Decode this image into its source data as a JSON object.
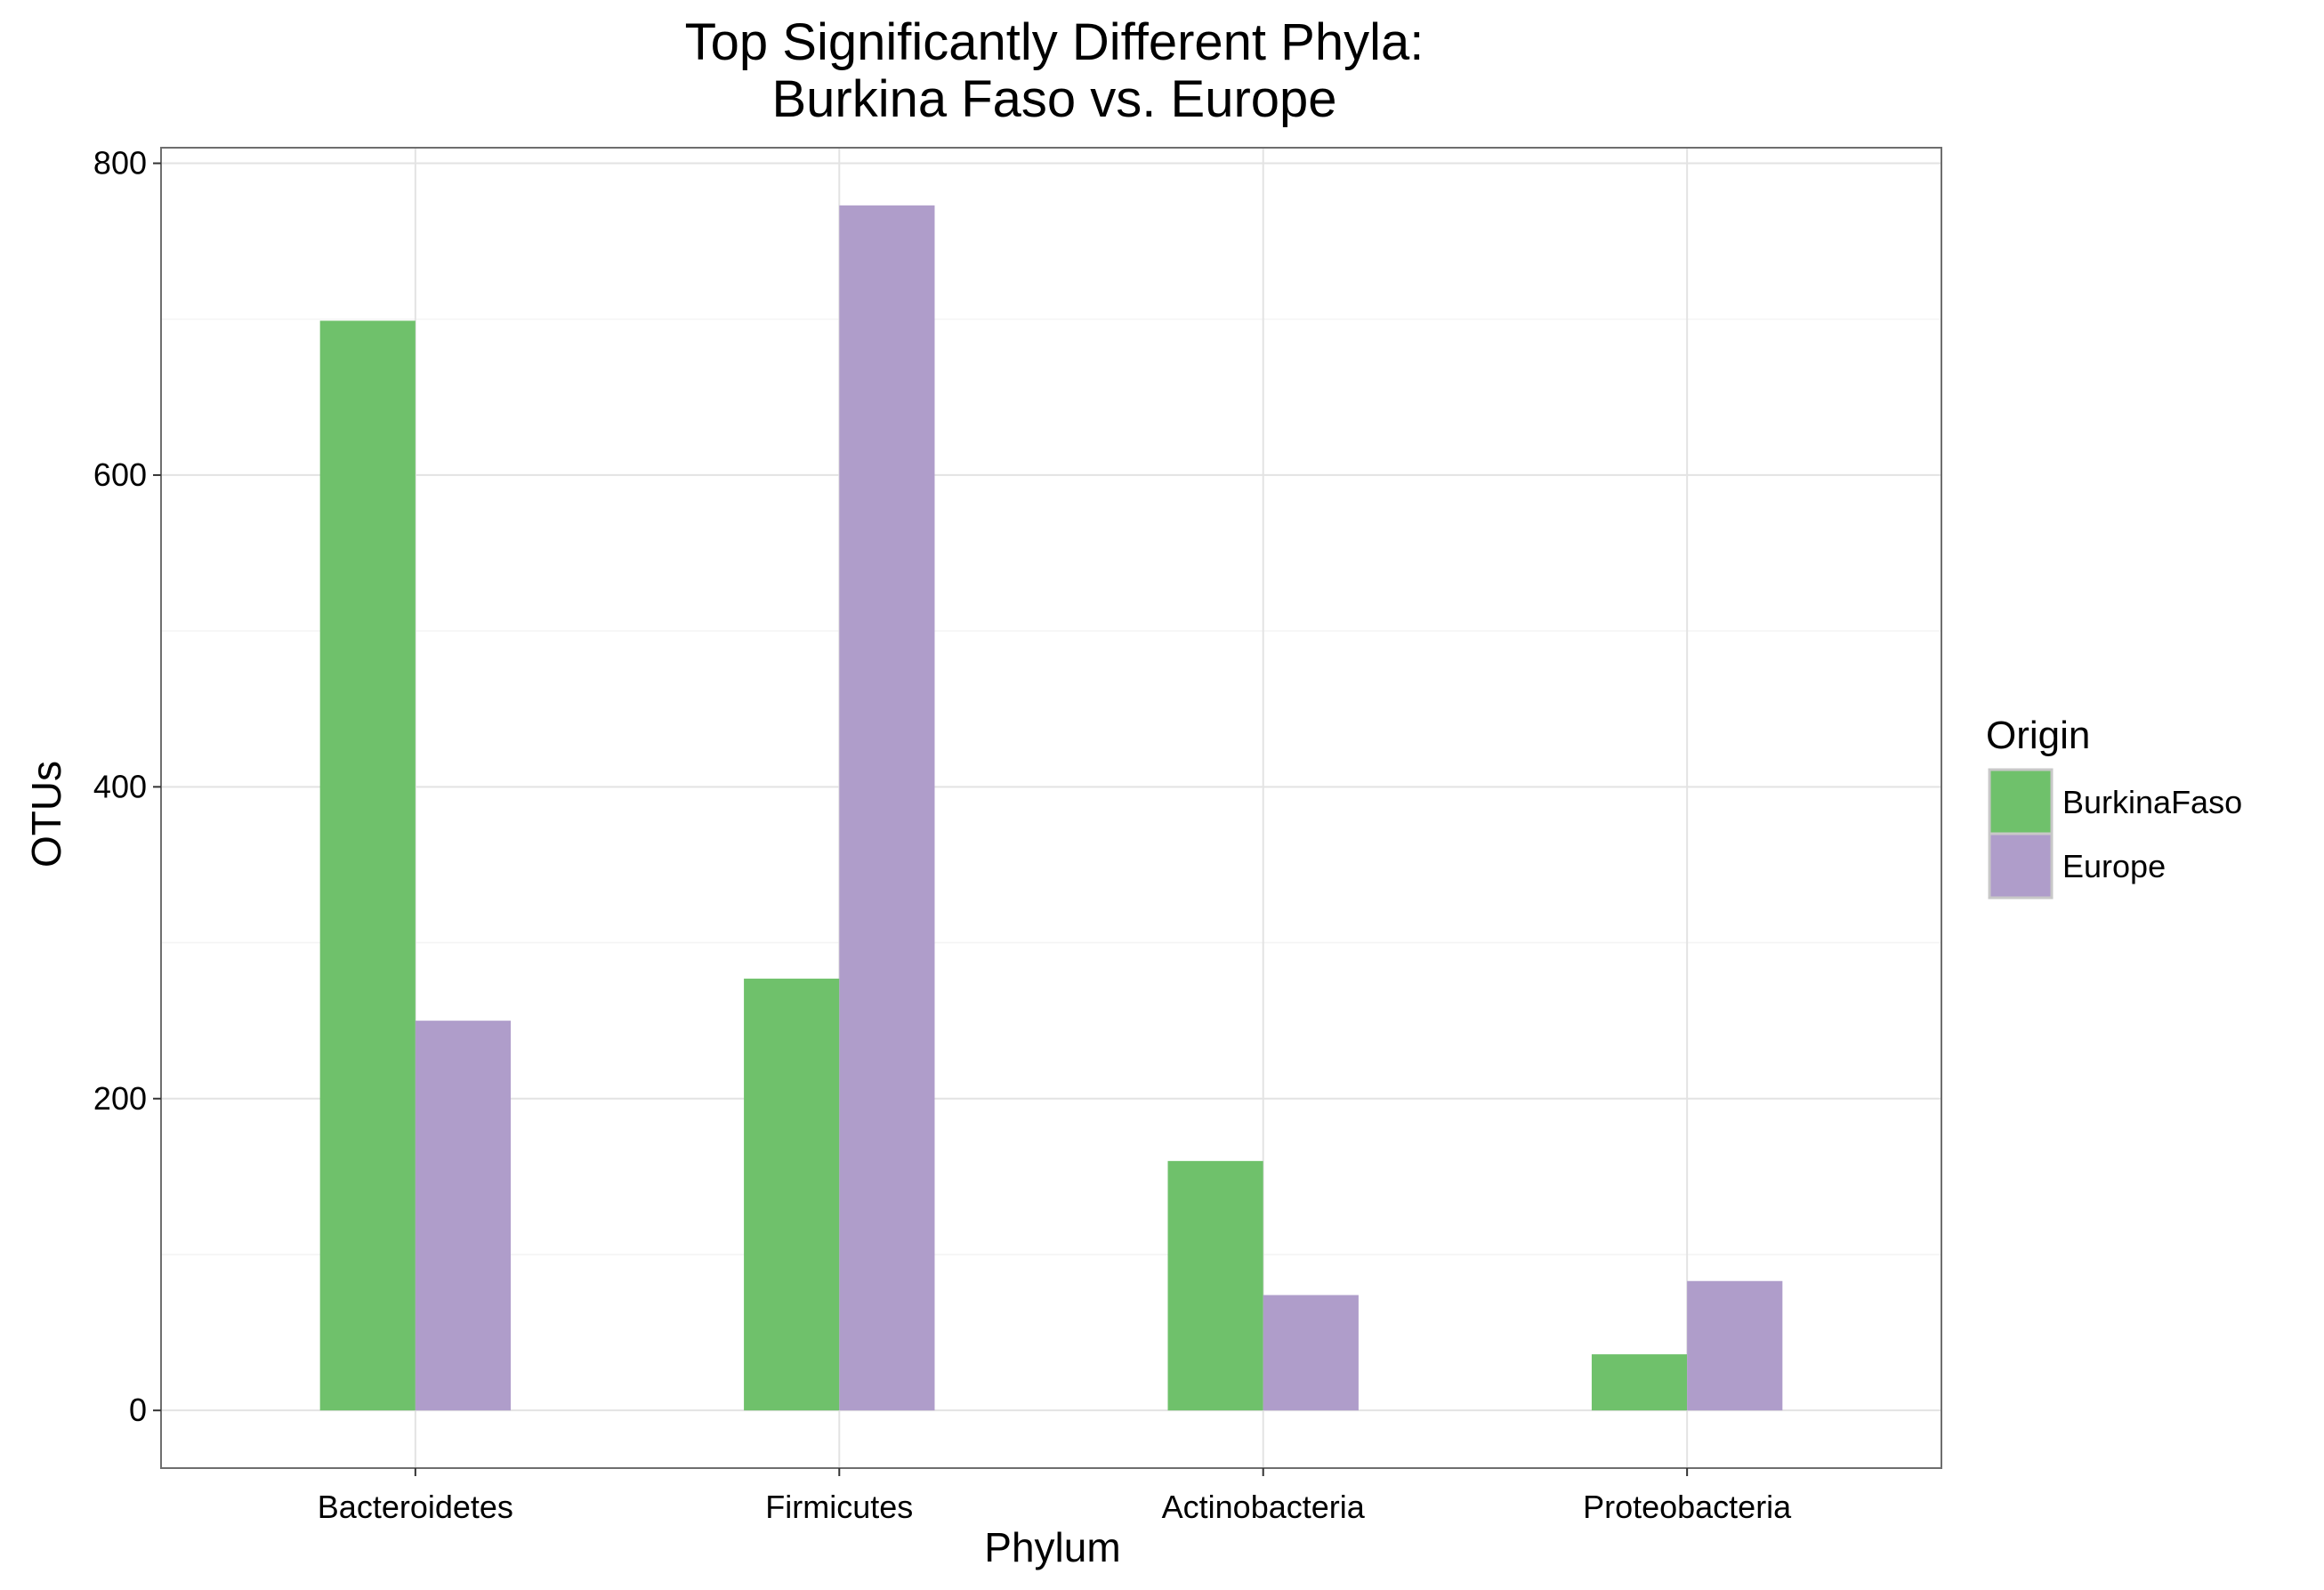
{
  "chart_data": {
    "type": "bar",
    "title": "Top Significantly Different Phyla:",
    "subtitle": "Burkina Faso vs. Europe",
    "xlabel": "Phylum",
    "ylabel": "OTUs",
    "categories": [
      "Bacteroidetes",
      "Firmicutes",
      "Actinobacteria",
      "Proteobacteria"
    ],
    "series": [
      {
        "name": "BurkinaFaso",
        "values": [
          699,
          277,
          160,
          36
        ],
        "color": "#6FC16B"
      },
      {
        "name": "Europe",
        "values": [
          250,
          773,
          74,
          83
        ],
        "color": "#AF9DCA"
      }
    ],
    "ylim": [
      -37,
      810
    ],
    "yticks": [
      0,
      200,
      400,
      600,
      800
    ],
    "ytick_labels": [
      "0",
      "200",
      "400",
      "600",
      "800"
    ],
    "grid": true,
    "legend": {
      "title": "Origin",
      "position": "right"
    }
  }
}
